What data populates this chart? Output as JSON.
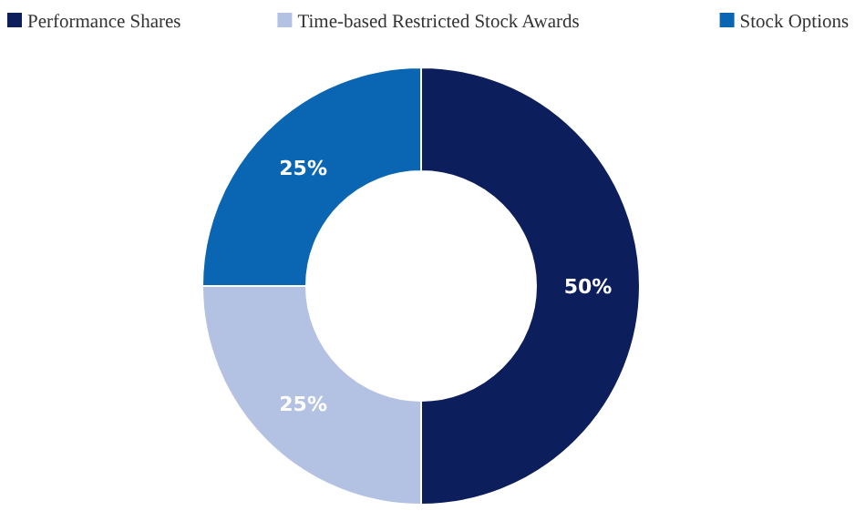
{
  "chart_data": {
    "type": "donut",
    "categories": [
      "Performance Shares",
      "Time-based Restricted Stock Awards",
      "Stock Options"
    ],
    "values": [
      50,
      25,
      25
    ],
    "colors": [
      "#0c1f5c",
      "#b3c2e3",
      "#0a66b2"
    ],
    "value_labels": [
      "50%",
      "25%",
      "25%"
    ],
    "legend": "top"
  }
}
